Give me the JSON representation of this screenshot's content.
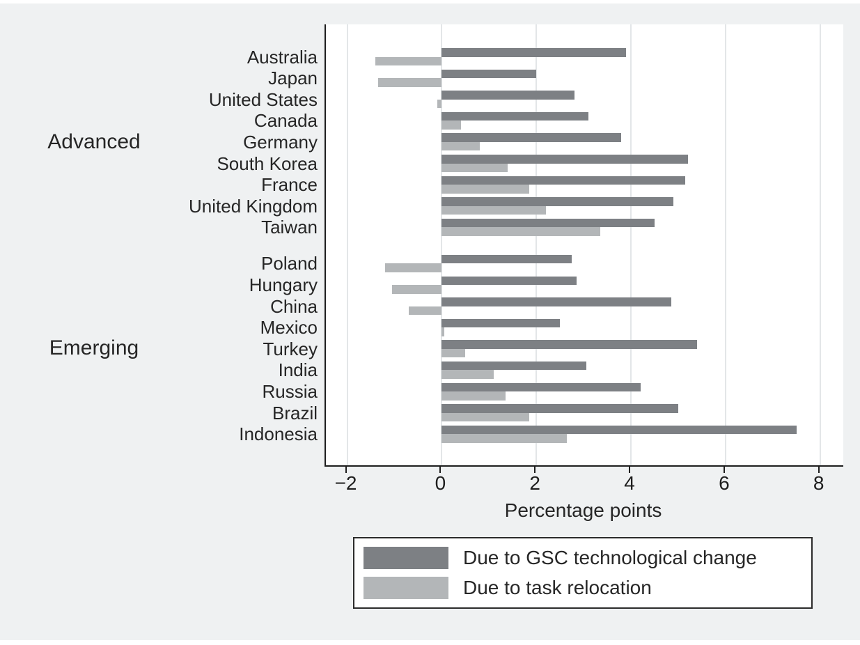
{
  "figure": {
    "x_axis_title": "Percentage points"
  },
  "chart_data": {
    "type": "bar",
    "orientation": "horizontal",
    "title": "",
    "xlabel": "Percentage points",
    "ylabel": "",
    "xlim": [
      -2.45,
      8.49
    ],
    "x_ticks": [
      -2,
      0,
      2,
      4,
      6,
      8
    ],
    "grid": true,
    "grid_axis": "x",
    "legend_position": "bottom",
    "series": [
      {
        "name": "Due to GSC technological change",
        "color": "#7d8084"
      },
      {
        "name": "Due to task relocation",
        "color": "#b3b6b8"
      }
    ],
    "groups": [
      {
        "label": "Advanced",
        "rows": [
          {
            "label": "Australia",
            "values": [
              3.9,
              -1.4
            ]
          },
          {
            "label": "Japan",
            "values": [
              2.0,
              -1.35
            ]
          },
          {
            "label": "United States",
            "values": [
              2.8,
              -0.1
            ]
          },
          {
            "label": "Canada",
            "values": [
              3.1,
              0.4
            ]
          },
          {
            "label": "Germany",
            "values": [
              3.8,
              0.8
            ]
          },
          {
            "label": "South Korea",
            "values": [
              5.2,
              1.4
            ]
          },
          {
            "label": "France",
            "values": [
              5.15,
              1.85
            ]
          },
          {
            "label": "United Kingdom",
            "values": [
              4.9,
              2.2
            ]
          },
          {
            "label": "Taiwan",
            "values": [
              4.5,
              3.35
            ]
          }
        ]
      },
      {
        "label": "Emerging",
        "rows": [
          {
            "label": "Poland",
            "values": [
              2.75,
              -1.2
            ]
          },
          {
            "label": "Hungary",
            "values": [
              2.85,
              -1.05
            ]
          },
          {
            "label": "China",
            "values": [
              4.85,
              -0.7
            ]
          },
          {
            "label": "Mexico",
            "values": [
              2.5,
              0.05
            ]
          },
          {
            "label": "Turkey",
            "values": [
              5.4,
              0.5
            ]
          },
          {
            "label": "India",
            "values": [
              3.05,
              1.1
            ]
          },
          {
            "label": "Russia",
            "values": [
              4.2,
              1.35
            ]
          },
          {
            "label": "Brazil",
            "values": [
              5.0,
              1.85
            ]
          },
          {
            "label": "Indonesia",
            "values": [
              7.5,
              2.65
            ]
          }
        ]
      }
    ]
  }
}
